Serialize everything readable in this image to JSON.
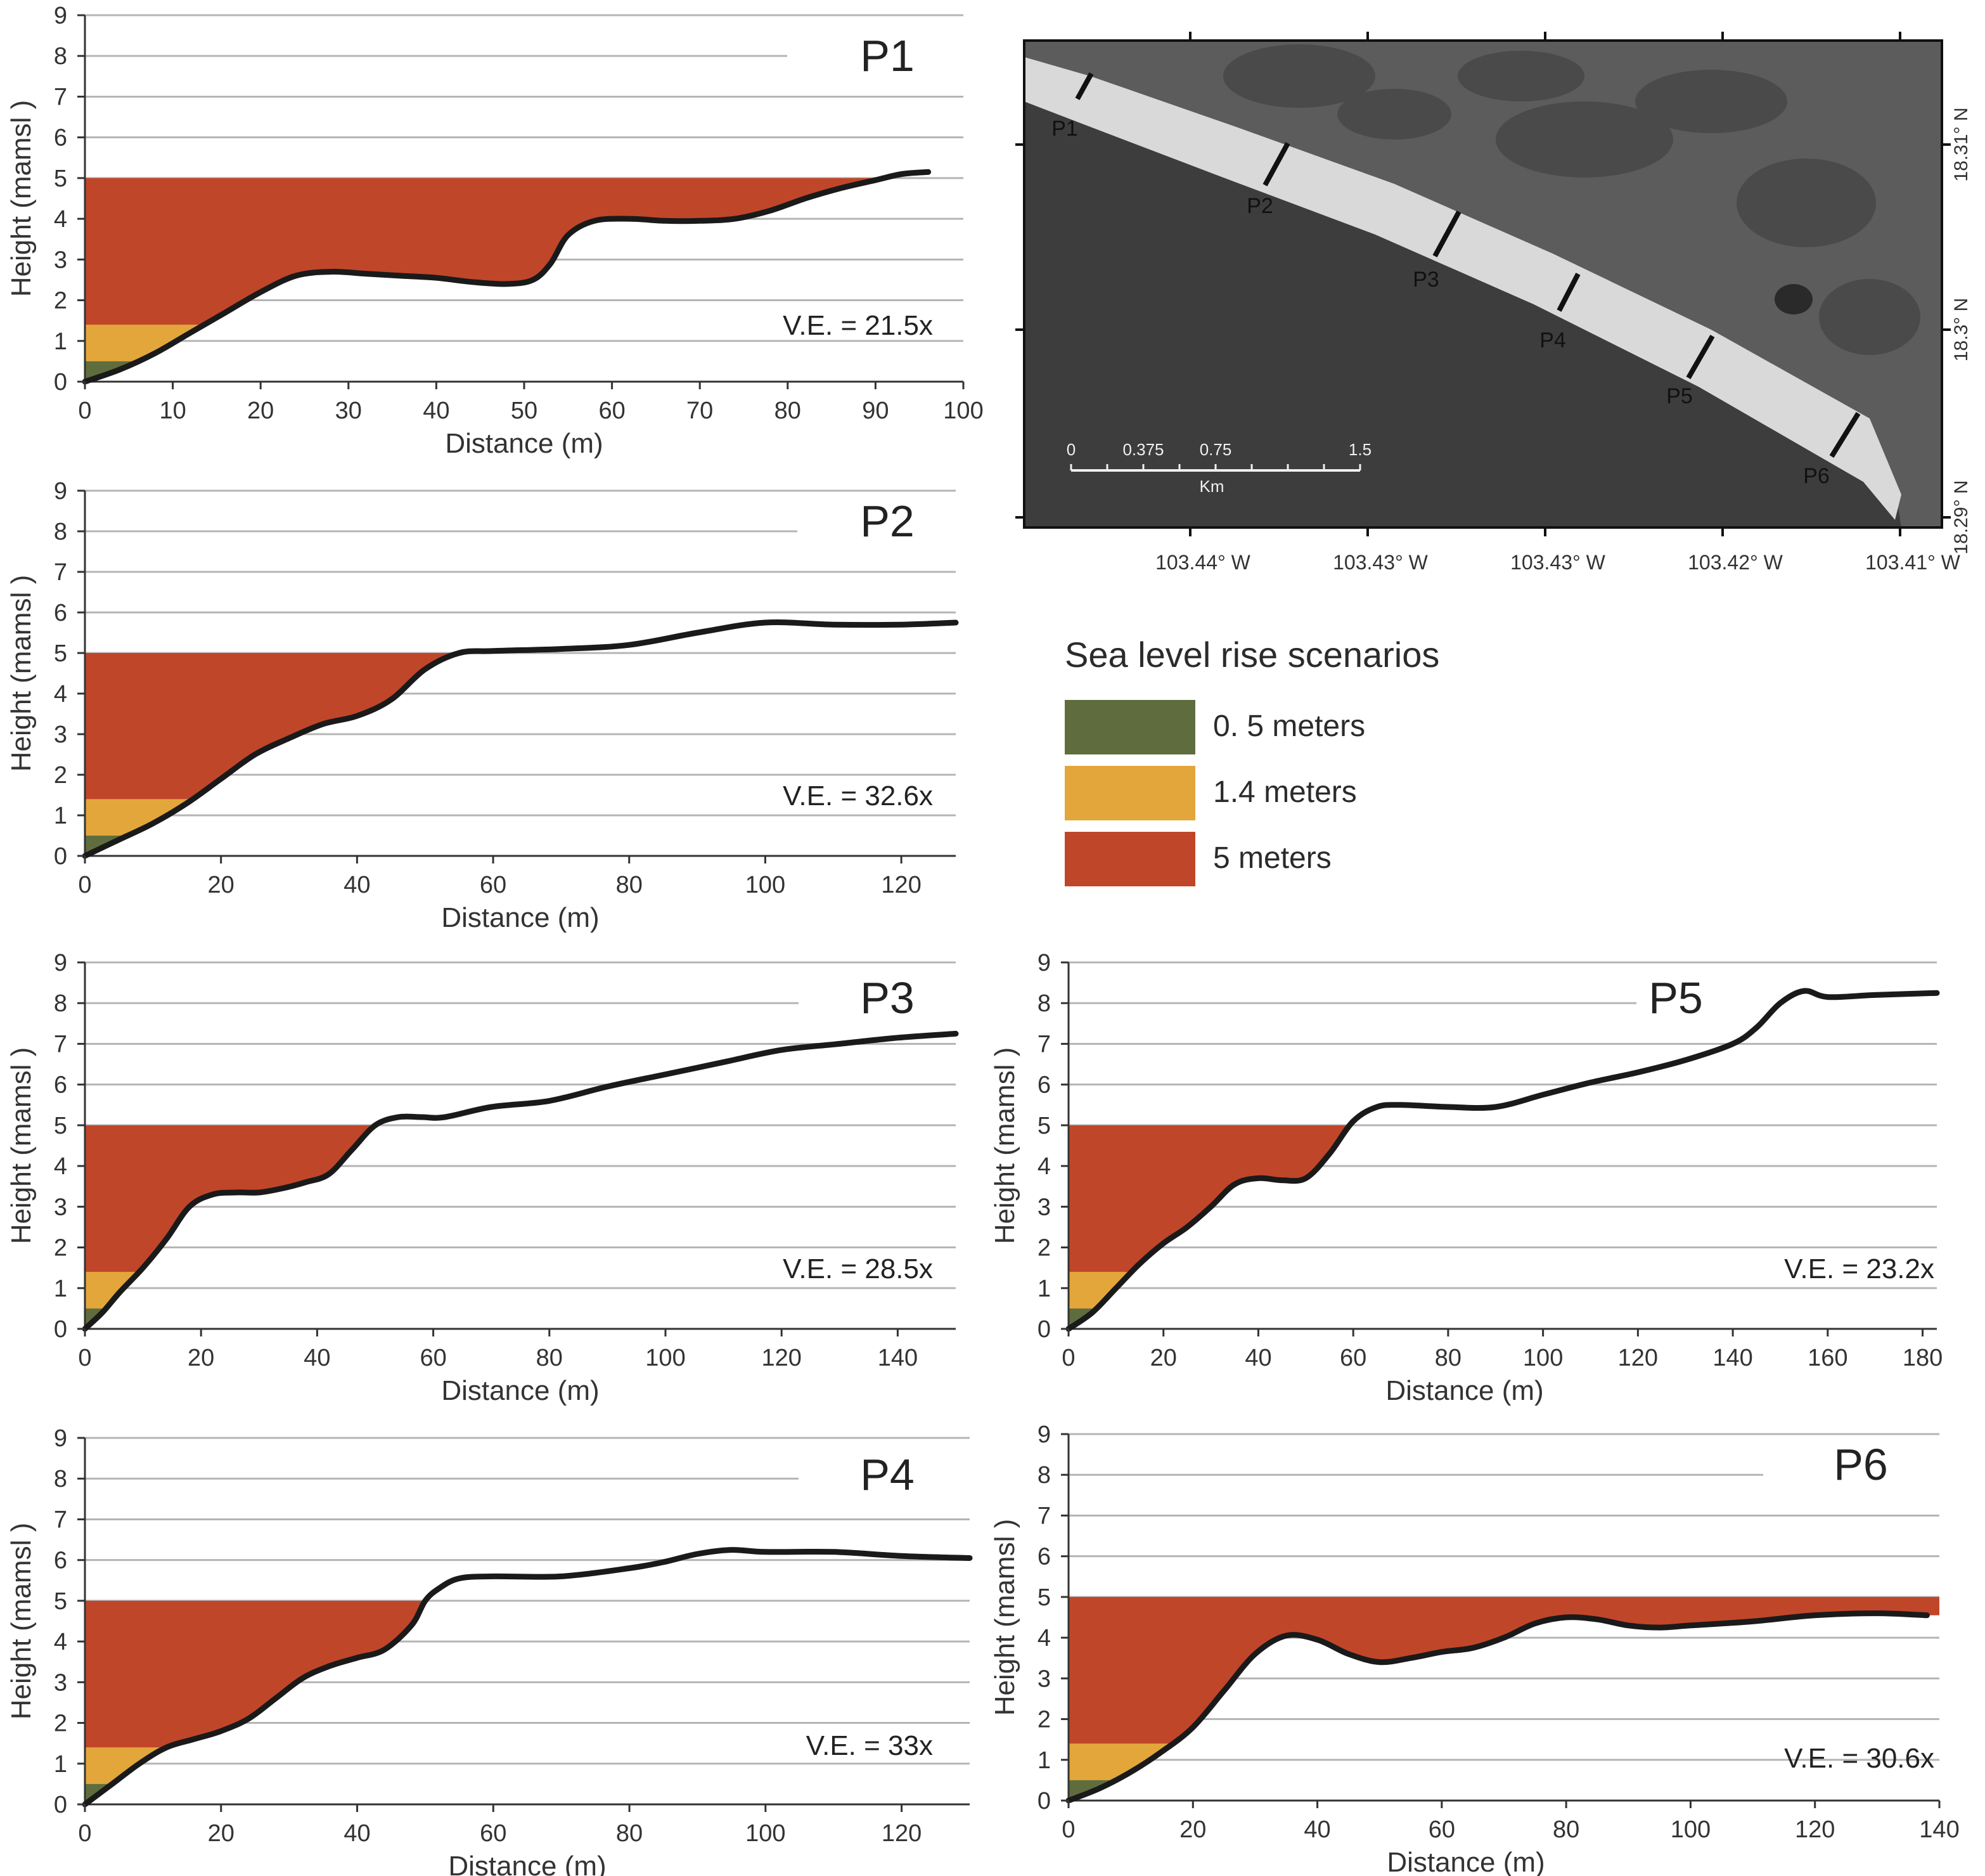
{
  "colors": {
    "rise_0_5": "#5f6d3e",
    "rise_1_4": "#e3a63b",
    "rise_5": "#c0462a",
    "profile_line": "#1a1a1a",
    "grid": "#b5b5b5",
    "sea": "#3d3d3d",
    "land": "#5c5c5c",
    "beach": "#d9d9d9"
  },
  "legend": {
    "title": "Sea level rise scenarios",
    "items": [
      {
        "label": "0. 5 meters",
        "color": "#5f6d3e",
        "level": 0.5
      },
      {
        "label": "1.4 meters",
        "color": "#e3a63b",
        "level": 1.4
      },
      {
        "label": "5 meters",
        "color": "#c0462a",
        "level": 5
      }
    ]
  },
  "chart_data": [
    {
      "type": "area",
      "id": "P1",
      "title": "P1",
      "annotation": "V.E. = 21.5x",
      "xlabel": "Distance (m)",
      "ylabel": "Height (mamsl )",
      "xlim": [
        0,
        100
      ],
      "ylim": [
        0,
        9
      ],
      "xticks": [
        0,
        10,
        20,
        30,
        40,
        50,
        60,
        70,
        80,
        90,
        100
      ],
      "yticks": [
        0,
        1,
        2,
        3,
        4,
        5,
        6,
        7,
        8,
        9
      ],
      "profile": {
        "x": [
          0,
          4,
          8,
          12,
          16,
          20,
          24,
          28,
          32,
          36,
          40,
          44,
          48,
          51,
          53,
          55,
          58,
          62,
          66,
          70,
          74,
          78,
          82,
          86,
          90,
          93,
          96
        ],
        "y": [
          0,
          0.3,
          0.7,
          1.2,
          1.7,
          2.2,
          2.6,
          2.7,
          2.65,
          2.6,
          2.55,
          2.45,
          2.4,
          2.5,
          2.9,
          3.6,
          3.95,
          4.0,
          3.95,
          3.95,
          4.0,
          4.2,
          4.5,
          4.75,
          4.95,
          5.1,
          5.15
        ]
      }
    },
    {
      "type": "area",
      "id": "P2",
      "title": "P2",
      "annotation": "V.E. = 32.6x",
      "xlabel": "Distance (m)",
      "ylabel": "Height (mamsl )",
      "xlim": [
        0,
        128
      ],
      "ylim": [
        0,
        9
      ],
      "xticks": [
        0,
        20,
        40,
        60,
        80,
        100,
        120
      ],
      "yticks": [
        0,
        1,
        2,
        3,
        4,
        5,
        6,
        7,
        8,
        9
      ],
      "profile": {
        "x": [
          0,
          5,
          10,
          15,
          20,
          25,
          30,
          35,
          40,
          45,
          50,
          55,
          60,
          70,
          80,
          90,
          100,
          110,
          120,
          128
        ],
        "y": [
          0,
          0.4,
          0.8,
          1.3,
          1.9,
          2.5,
          2.9,
          3.25,
          3.45,
          3.85,
          4.6,
          5.0,
          5.05,
          5.1,
          5.2,
          5.5,
          5.75,
          5.7,
          5.7,
          5.75
        ]
      }
    },
    {
      "type": "area",
      "id": "P3",
      "title": "P3",
      "annotation": "V.E. = 28.5x",
      "xlabel": "Distance (m)",
      "ylabel": "Height (mamsl )",
      "xlim": [
        0,
        150
      ],
      "ylim": [
        0,
        9
      ],
      "xticks": [
        0,
        20,
        40,
        60,
        80,
        100,
        120,
        140
      ],
      "yticks": [
        0,
        1,
        2,
        3,
        4,
        5,
        6,
        7,
        8,
        9
      ],
      "profile": {
        "x": [
          0,
          3,
          6,
          10,
          14,
          18,
          22,
          26,
          30,
          34,
          38,
          42,
          46,
          50,
          54,
          58,
          62,
          70,
          80,
          90,
          100,
          110,
          120,
          130,
          140,
          150
        ],
        "y": [
          0,
          0.4,
          0.9,
          1.5,
          2.2,
          3.0,
          3.3,
          3.35,
          3.35,
          3.45,
          3.6,
          3.8,
          4.4,
          5.0,
          5.2,
          5.2,
          5.2,
          5.45,
          5.6,
          5.95,
          6.25,
          6.55,
          6.85,
          7.0,
          7.15,
          7.25
        ]
      }
    },
    {
      "type": "area",
      "id": "P4",
      "title": "P4",
      "annotation": "V.E. = 33x",
      "xlabel": "Distance (m)",
      "ylabel": "Height (mamsl )",
      "xlim": [
        0,
        130
      ],
      "ylim": [
        0,
        9
      ],
      "xticks": [
        0,
        20,
        40,
        60,
        80,
        100,
        120
      ],
      "yticks": [
        0,
        1,
        2,
        3,
        4,
        5,
        6,
        7,
        8,
        9
      ],
      "profile": {
        "x": [
          0,
          4,
          8,
          12,
          16,
          20,
          24,
          28,
          32,
          36,
          40,
          44,
          48,
          50,
          52,
          55,
          60,
          70,
          80,
          85,
          90,
          95,
          100,
          110,
          120,
          130
        ],
        "y": [
          0,
          0.5,
          1.0,
          1.4,
          1.6,
          1.8,
          2.1,
          2.6,
          3.1,
          3.4,
          3.6,
          3.8,
          4.4,
          5.0,
          5.3,
          5.55,
          5.6,
          5.6,
          5.8,
          5.95,
          6.15,
          6.25,
          6.2,
          6.2,
          6.1,
          6.05
        ]
      }
    },
    {
      "type": "area",
      "id": "P5",
      "title": "P5",
      "annotation": "V.E. = 23.2x",
      "xlabel": "Distance (m)",
      "ylabel": "Height (mamsl )",
      "xlim": [
        0,
        183
      ],
      "ylim": [
        0,
        9
      ],
      "xticks": [
        0,
        20,
        40,
        60,
        80,
        100,
        120,
        140,
        160,
        180
      ],
      "yticks": [
        0,
        1,
        2,
        3,
        4,
        5,
        6,
        7,
        8,
        9
      ],
      "profile": {
        "x": [
          0,
          5,
          10,
          15,
          20,
          25,
          30,
          35,
          40,
          45,
          50,
          55,
          60,
          65,
          70,
          80,
          90,
          100,
          110,
          120,
          130,
          140,
          145,
          150,
          155,
          160,
          170,
          183
        ],
        "y": [
          0,
          0.4,
          1.0,
          1.6,
          2.1,
          2.5,
          3.0,
          3.55,
          3.7,
          3.65,
          3.7,
          4.3,
          5.1,
          5.45,
          5.5,
          5.45,
          5.45,
          5.75,
          6.05,
          6.3,
          6.6,
          7.0,
          7.4,
          8.0,
          8.3,
          8.15,
          8.2,
          8.25
        ]
      }
    },
    {
      "type": "area",
      "id": "P6",
      "title": "P6",
      "annotation": "V.E. = 30.6x",
      "xlabel": "Distance (m)",
      "ylabel": "Height (mamsl )",
      "xlim": [
        0,
        140
      ],
      "ylim": [
        0,
        9
      ],
      "xticks": [
        0,
        20,
        40,
        60,
        80,
        100,
        120,
        140
      ],
      "yticks": [
        0,
        1,
        2,
        3,
        4,
        5,
        6,
        7,
        8,
        9
      ],
      "profile": {
        "x": [
          0,
          5,
          10,
          15,
          20,
          25,
          30,
          35,
          40,
          45,
          50,
          55,
          60,
          65,
          70,
          75,
          80,
          85,
          90,
          95,
          100,
          110,
          120,
          130,
          138
        ],
        "y": [
          0,
          0.3,
          0.7,
          1.2,
          1.8,
          2.7,
          3.6,
          4.05,
          3.95,
          3.6,
          3.4,
          3.5,
          3.65,
          3.75,
          4.0,
          4.35,
          4.5,
          4.45,
          4.3,
          4.25,
          4.3,
          4.4,
          4.55,
          4.6,
          4.55
        ]
      }
    }
  ],
  "map": {
    "scale_labels": [
      "0",
      "0.375",
      "0.75",
      "1.5"
    ],
    "scale_km": [
      0,
      0.375,
      0.75,
      1.5
    ],
    "scale_unit": "Km",
    "lon_labels": [
      "103.44° W",
      "103.43° W",
      "103.43° W",
      "103.42° W",
      "103.41° W"
    ],
    "lat_labels": [
      "18.31° N",
      "18.3° N",
      "18.29° N"
    ],
    "profile_labels": [
      "P1",
      "P2",
      "P3",
      "P4",
      "P5",
      "P6"
    ]
  }
}
